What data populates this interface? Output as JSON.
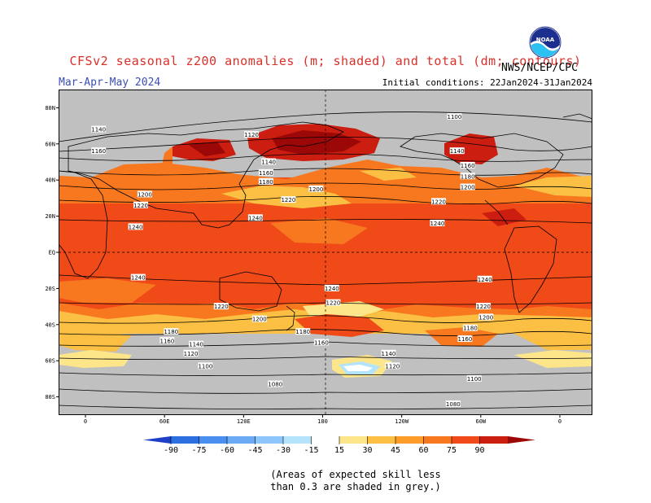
{
  "header": {
    "title": "CFSv2 seasonal z200 anomalies (m; shaded) and total (dm; contours)",
    "season": "Mar-Apr-May 2024",
    "initial_conditions": "Initial conditions: 22Jan2024-31Jan2024",
    "agency": "NWS/NCEP/CPC",
    "logo_text": "NOAA"
  },
  "footnote": {
    "line1": "(Areas of expected skill less",
    "line2": "than 0.3 are shaded in grey.)"
  },
  "chart_data": {
    "type": "heatmap",
    "lat_ticks": [
      "80N",
      "60N",
      "40N",
      "20N",
      "EQ",
      "20S",
      "40S",
      "60S",
      "80S"
    ],
    "lon_ticks": [
      "0",
      "60E",
      "120E",
      "180",
      "120W",
      "60W",
      "0"
    ],
    "colorbar": {
      "ticks": [
        "-90",
        "-75",
        "-60",
        "-45",
        "-30",
        "-15",
        "15",
        "30",
        "45",
        "60",
        "75",
        "90"
      ],
      "colors": [
        "#1e3fc8",
        "#2b6fe0",
        "#4a8ff0",
        "#6aaaf5",
        "#8cc6fa",
        "#b4e4fb",
        "#ffffff",
        "#fde68a",
        "#fbc043",
        "#fb9d28",
        "#f87820",
        "#ef4a18",
        "#cc1e10",
        "#9c0808"
      ],
      "unit": "m"
    },
    "grey_color": "#c0c0c0",
    "contour_labels": [
      {
        "text": "1140",
        "lon": 10,
        "lat": 68
      },
      {
        "text": "1160",
        "lon": 10,
        "lat": 56
      },
      {
        "text": "1120",
        "lon": 126,
        "lat": 65
      },
      {
        "text": "1100",
        "lon": 280,
        "lat": 75
      },
      {
        "text": "1140",
        "lon": 282,
        "lat": 56
      },
      {
        "text": "1160",
        "lon": 290,
        "lat": 48
      },
      {
        "text": "1180",
        "lon": 290,
        "lat": 42
      },
      {
        "text": "1200",
        "lon": 290,
        "lat": 36
      },
      {
        "text": "1140",
        "lon": 139,
        "lat": 50
      },
      {
        "text": "1160",
        "lon": 137,
        "lat": 44
      },
      {
        "text": "1180",
        "lon": 137,
        "lat": 39
      },
      {
        "text": "1200",
        "lon": 45,
        "lat": 32
      },
      {
        "text": "1220",
        "lon": 42,
        "lat": 26
      },
      {
        "text": "1220",
        "lon": 154,
        "lat": 29
      },
      {
        "text": "1200",
        "lon": 175,
        "lat": 35
      },
      {
        "text": "1220",
        "lon": 268,
        "lat": 28
      },
      {
        "text": "1240",
        "lon": 129,
        "lat": 19
      },
      {
        "text": "1240",
        "lon": 38,
        "lat": 14
      },
      {
        "text": "1240",
        "lon": 267,
        "lat": 16
      },
      {
        "text": "1240",
        "lon": 40,
        "lat": -14
      },
      {
        "text": "1240",
        "lon": 187,
        "lat": -20
      },
      {
        "text": "1240",
        "lon": 303,
        "lat": -15
      },
      {
        "text": "1220",
        "lon": 103,
        "lat": -30
      },
      {
        "text": "1220",
        "lon": 188,
        "lat": -28
      },
      {
        "text": "1220",
        "lon": 302,
        "lat": -30
      },
      {
        "text": "1200",
        "lon": 132,
        "lat": -37
      },
      {
        "text": "1200",
        "lon": 304,
        "lat": -36
      },
      {
        "text": "1180",
        "lon": 65,
        "lat": -44
      },
      {
        "text": "1180",
        "lon": 165,
        "lat": -44
      },
      {
        "text": "1180",
        "lon": 292,
        "lat": -42
      },
      {
        "text": "1160",
        "lon": 62,
        "lat": -49
      },
      {
        "text": "1160",
        "lon": 179,
        "lat": -50
      },
      {
        "text": "1160",
        "lon": 288,
        "lat": -48
      },
      {
        "text": "1140",
        "lon": 84,
        "lat": -51
      },
      {
        "text": "1120",
        "lon": 80,
        "lat": -56
      },
      {
        "text": "1140",
        "lon": 230,
        "lat": -56
      },
      {
        "text": "1120",
        "lon": 233,
        "lat": -63
      },
      {
        "text": "1100",
        "lon": 91,
        "lat": -63
      },
      {
        "text": "1100",
        "lon": 295,
        "lat": -70
      },
      {
        "text": "1080",
        "lon": 144,
        "lat": -73
      },
      {
        "text": "1080",
        "lon": 279,
        "lat": -84
      }
    ]
  }
}
